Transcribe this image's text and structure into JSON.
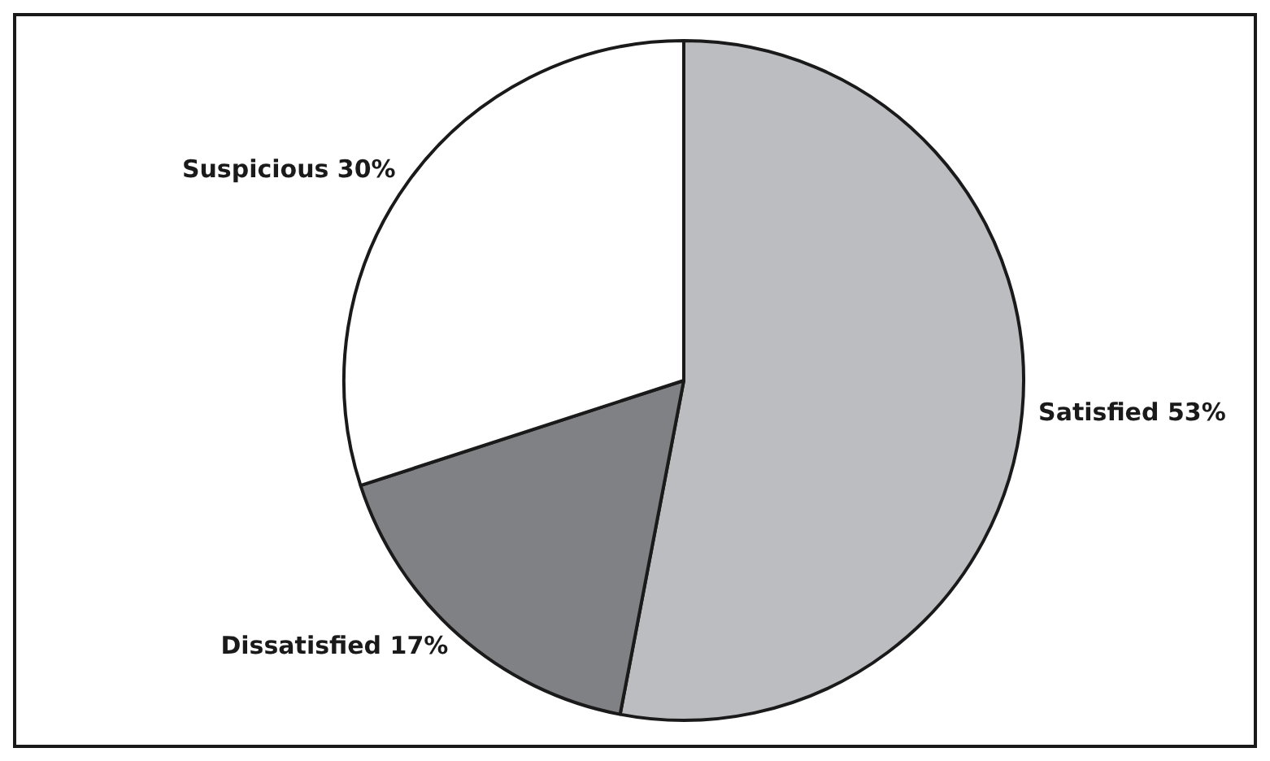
{
  "chart_data": {
    "type": "pie",
    "categories": [
      "Satisfied",
      "Dissatisfied",
      "Suspicious"
    ],
    "values": [
      53,
      17,
      30
    ],
    "value_labels": [
      "53%",
      "17%",
      "30%"
    ],
    "colors": [
      "#bcbdc0",
      "#808184",
      "#ffffff"
    ],
    "legend": false
  }
}
